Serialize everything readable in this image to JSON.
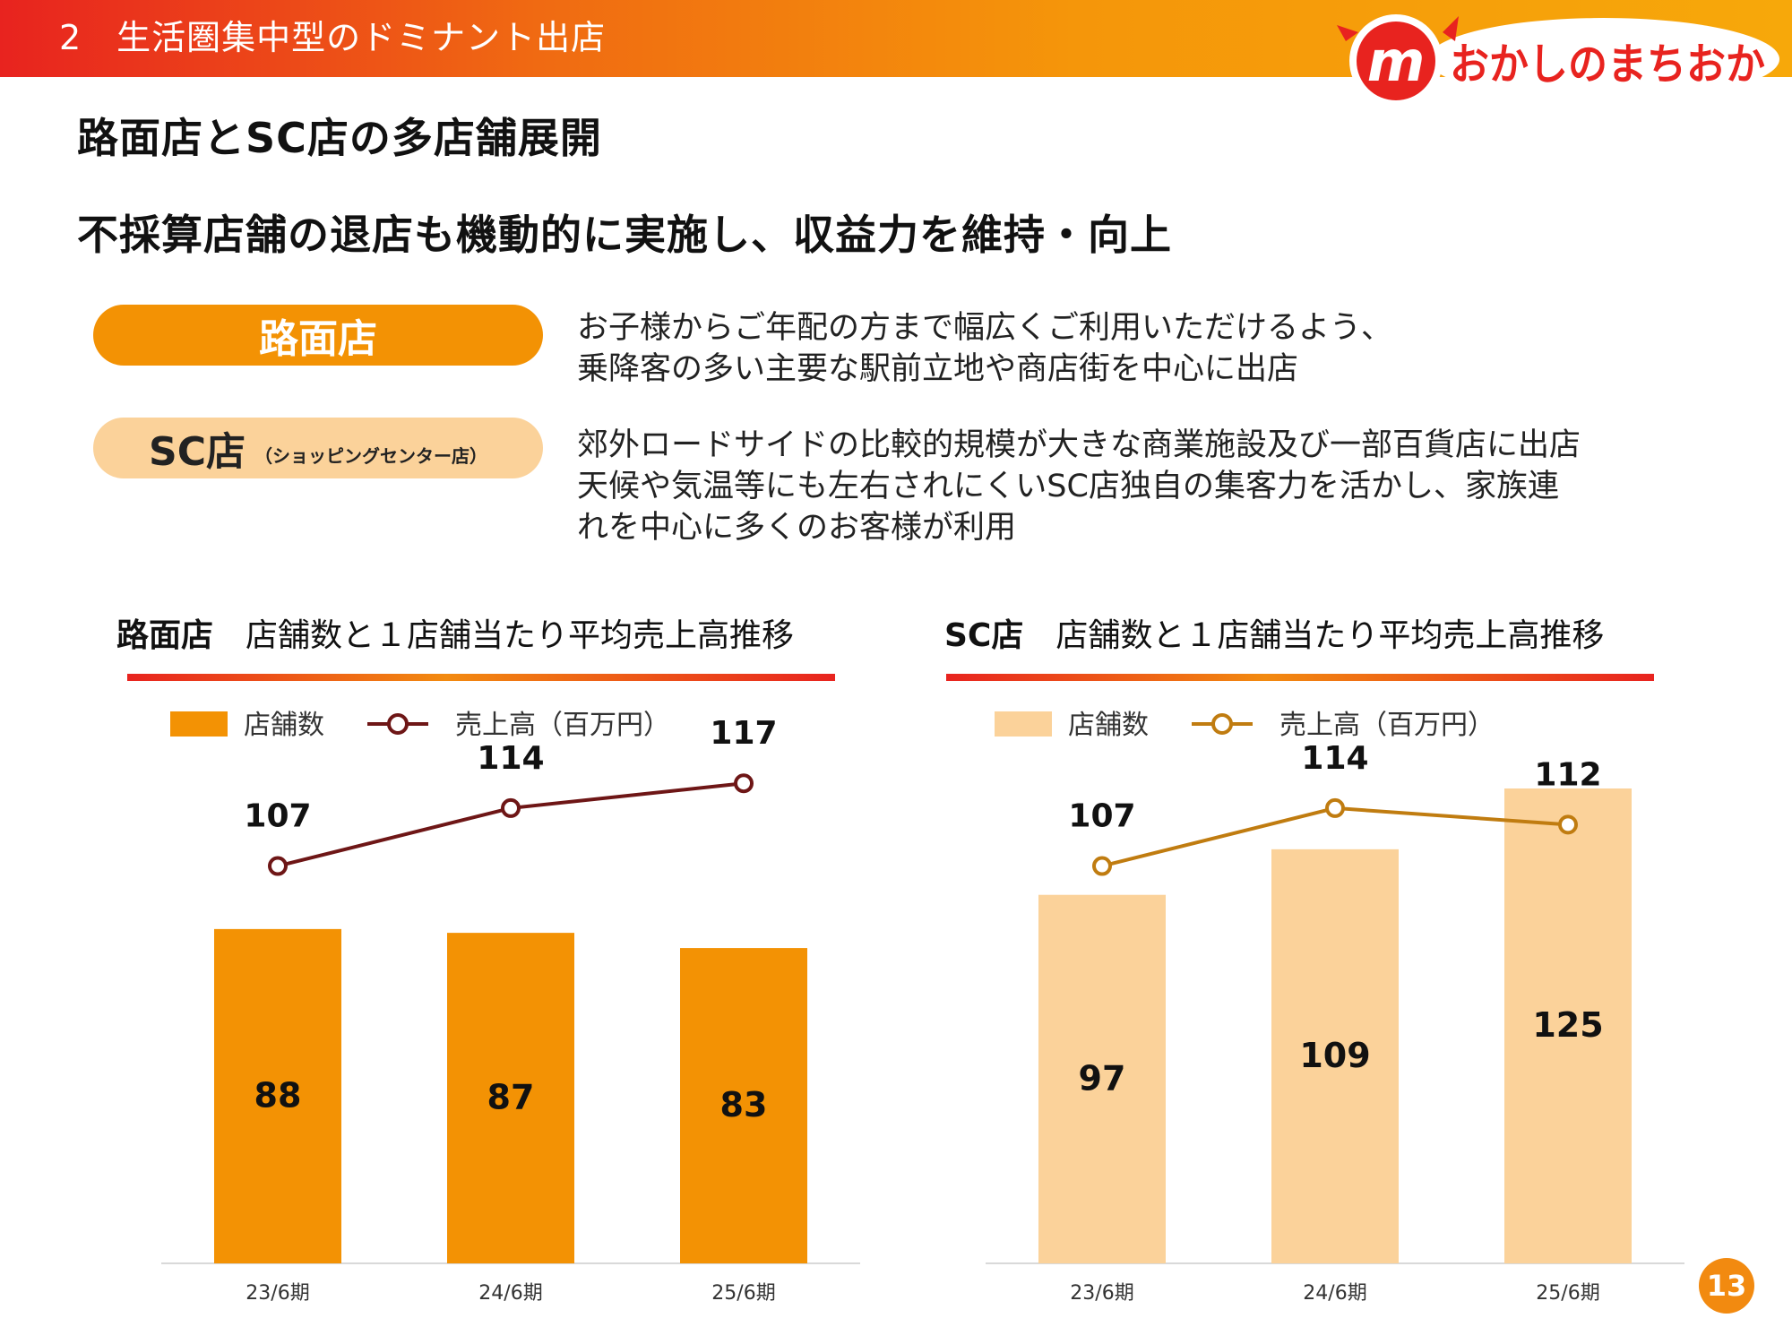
{
  "header": {
    "section_title": "2　生活圏集中型のドミナント出店",
    "logo_mark": "m",
    "logo_text": "おかしのまちおか"
  },
  "headlines": [
    "路面店とSC店の多店舗展開",
    "不採算店舗の退店も機動的に実施し、収益力を維持・向上"
  ],
  "store_types": {
    "road": {
      "label": "路面店",
      "description": [
        "お子様からご年配の方まで幅広くご利用いただけるよう、",
        "乗降客の多い主要な駅前立地や商店街を中心に出店"
      ]
    },
    "sc": {
      "label": "SC店",
      "sublabel": "（ショッピングセンター店）",
      "description": [
        "郊外ロードサイドの比較的規模が大きな商業施設及び一部百貨店に出店",
        "天候や気温等にも左右されにくいSC店独自の集客力を活かし、家族連",
        "れを中心に多くのお客様が利用"
      ]
    }
  },
  "colors": {
    "road_bar": "#f39204",
    "road_line": "#6e1616",
    "sc_bar": "#fbd29a",
    "sc_line": "#c07c10",
    "accent_red": "#e8231f"
  },
  "chart_data": [
    {
      "type": "bar",
      "title_strong": "路面店",
      "title": "店舗数と１店舗当たり平均売上高推移",
      "categories": [
        "23/6期",
        "24/6期",
        "25/6期"
      ],
      "series": [
        {
          "name": "店舗数",
          "type": "bar",
          "values": [
            88,
            87,
            83
          ]
        },
        {
          "name": "売上高（百万円）",
          "type": "line",
          "values": [
            107,
            114,
            117
          ]
        }
      ],
      "legend": "top-left"
    },
    {
      "type": "bar",
      "title_strong": "SC店",
      "title": "店舗数と１店舗当たり平均売上高推移",
      "categories": [
        "23/6期",
        "24/6期",
        "25/6期"
      ],
      "series": [
        {
          "name": "店舗数",
          "type": "bar",
          "values": [
            97,
            109,
            125
          ]
        },
        {
          "name": "売上高（百万円）",
          "type": "line",
          "values": [
            107,
            114,
            112
          ]
        }
      ],
      "legend": "top-left"
    }
  ],
  "page_number": "13"
}
